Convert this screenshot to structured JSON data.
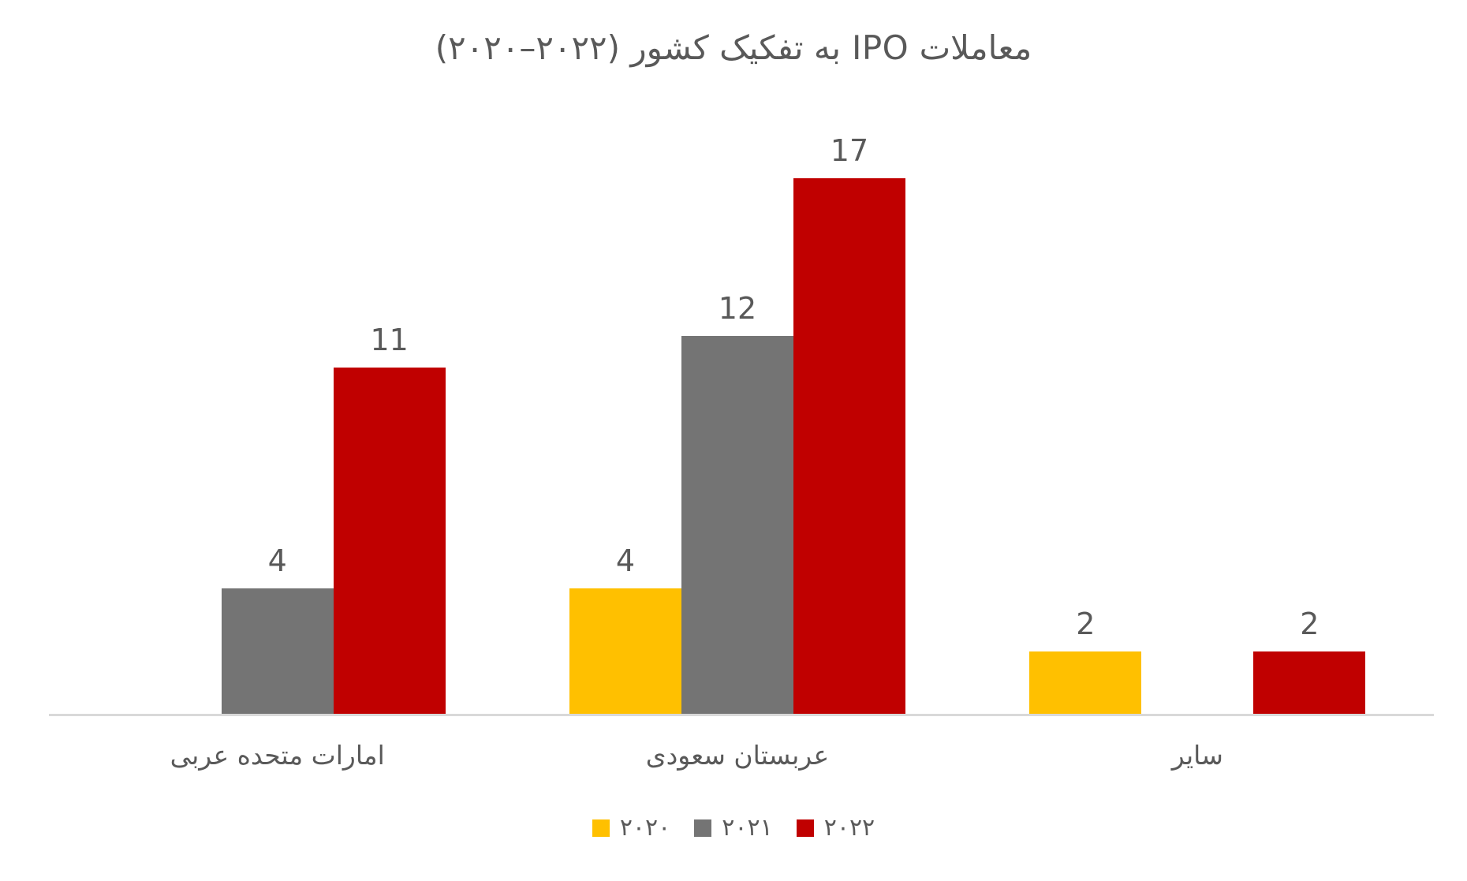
{
  "chart": {
    "title": "معاملات IPO به تفکیک کشور (۲۰۲۲–۲۰۲۰)"
  },
  "chart_data": {
    "type": "bar",
    "title": "معاملات IPO به تفکیک کشور (۲۰۲۲–۲۰۲۰)",
    "categories": [
      "امارات متحده عربی",
      "عربستان سعودی",
      "سایر"
    ],
    "category_keys": [
      "uae",
      "saudi-arabia",
      "other"
    ],
    "series": [
      {
        "name": "۲۰۲۰",
        "key": "2020",
        "color": "#FFC000",
        "values": [
          0,
          4,
          2
        ]
      },
      {
        "name": "۲۰۲۱",
        "key": "2021",
        "color": "#747474",
        "values": [
          4,
          12,
          0
        ]
      },
      {
        "name": "۲۰۲۲",
        "key": "2022",
        "color": "#C00000",
        "values": [
          11,
          17,
          2
        ]
      }
    ],
    "data_labels": true,
    "hide_zero_bars": true,
    "xlabel": "",
    "ylabel": "",
    "ylim": [
      0,
      17
    ],
    "gridlines": false,
    "y_axis_labels_visible": false,
    "legend_position": "bottom",
    "text_color": "#595959",
    "axis_line_color": "#D9D9D9",
    "background_color": "#FFFFFF"
  }
}
